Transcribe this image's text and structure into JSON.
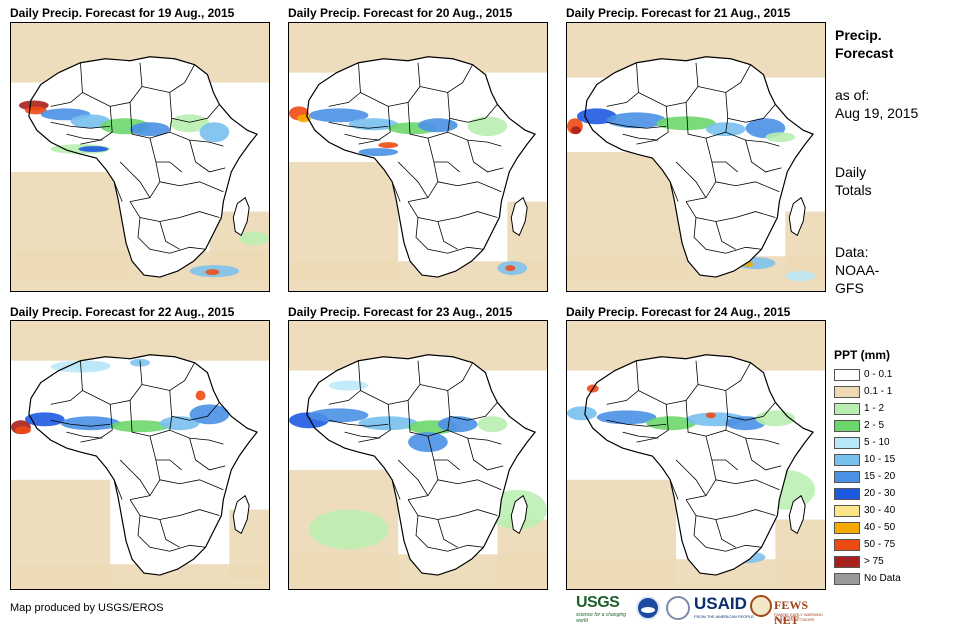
{
  "panels": [
    {
      "title": "Daily Precip. Forecast for 19 Aug., 2015"
    },
    {
      "title": "Daily Precip. Forecast for 20 Aug., 2015"
    },
    {
      "title": "Daily Precip. Forecast for 21 Aug., 2015"
    },
    {
      "title": "Daily Precip. Forecast for 22 Aug., 2015"
    },
    {
      "title": "Daily Precip. Forecast for 23 Aug., 2015"
    },
    {
      "title": "Daily Precip. Forecast for 24 Aug., 2015"
    }
  ],
  "side": {
    "heading_line1": "Precip.",
    "heading_line2": "Forecast",
    "asof_label": "as of:",
    "asof_date": "Aug 19, 2015",
    "totals_line1": "Daily",
    "totals_line2": "Totals",
    "data_line1": "Data:",
    "data_line2": "NOAA-",
    "data_line3": "GFS"
  },
  "legend": {
    "title": "PPT (mm)",
    "items": [
      {
        "label": "0 - 0.1",
        "color": "#ffffff"
      },
      {
        "label": "0.1 - 1",
        "color": "#ecd9b6"
      },
      {
        "label": "1 - 2",
        "color": "#b8eeb0"
      },
      {
        "label": "2 - 5",
        "color": "#6dd66b"
      },
      {
        "label": "5 - 10",
        "color": "#b8e8f8"
      },
      {
        "label": "10 - 15",
        "color": "#78c0ee"
      },
      {
        "label": "15 - 20",
        "color": "#4a90e6"
      },
      {
        "label": "20 - 30",
        "color": "#1e5ae0"
      },
      {
        "label": "30 - 40",
        "color": "#f8e688"
      },
      {
        "label": "40 - 50",
        "color": "#f5a800"
      },
      {
        "label": "50 - 75",
        "color": "#ef4a14"
      },
      {
        "label": "> 75",
        "color": "#a8201c"
      },
      {
        "label": "No Data",
        "color": "#999999"
      }
    ]
  },
  "credit": "Map produced by USGS/EROS",
  "logos": {
    "usgs": "USGS",
    "usgs_tagline": "science for a changing world",
    "usaid": "USAID",
    "usaid_tagline": "FROM THE AMERICAN PEOPLE",
    "fews": "FEWS NET",
    "fews_tagline": "FAMINE EARLY WARNING SYSTEMS NETWORK"
  }
}
